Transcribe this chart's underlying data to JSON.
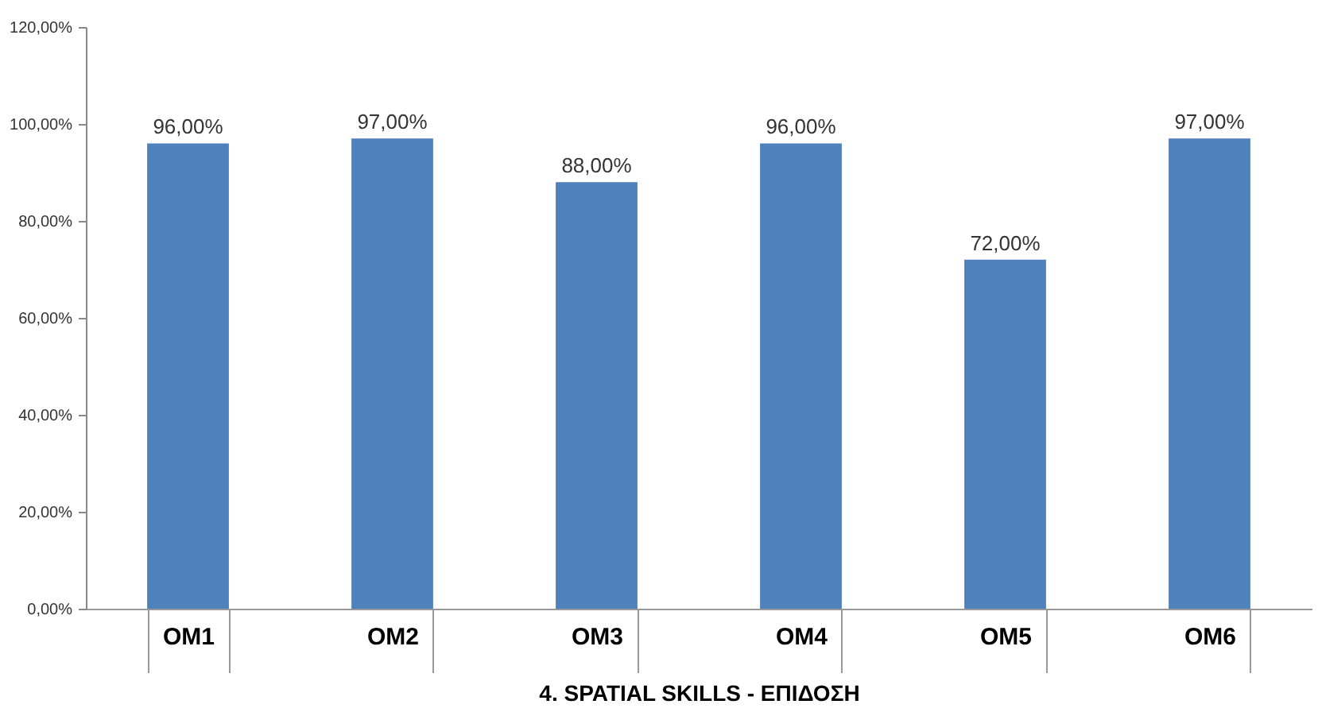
{
  "chart_data": {
    "type": "bar",
    "xlabel": "4. SPATIAL SKILLS - ΕΠΙΔΟΣΗ",
    "categories": [
      "ΟΜ1",
      "ΟΜ2",
      "ΟΜ3",
      "ΟΜ4",
      "ΟΜ5",
      "ΟΜ6"
    ],
    "values": [
      96,
      97,
      88,
      96,
      72,
      97
    ],
    "value_labels": [
      "96,00%",
      "97,00%",
      "88,00%",
      "96,00%",
      "72,00%",
      "97,00%"
    ],
    "color": "#4f81bd",
    "ylim": [
      0,
      120
    ],
    "yticks": [
      {
        "value": 0,
        "label": "0,00%"
      },
      {
        "value": 20,
        "label": "20,00%"
      },
      {
        "value": 40,
        "label": "40,00%"
      },
      {
        "value": 60,
        "label": "60,00%"
      },
      {
        "value": 80,
        "label": "80,00%"
      },
      {
        "value": 100,
        "label": "100,00%"
      },
      {
        "value": 120,
        "label": "120,00%"
      }
    ],
    "grid": false
  }
}
